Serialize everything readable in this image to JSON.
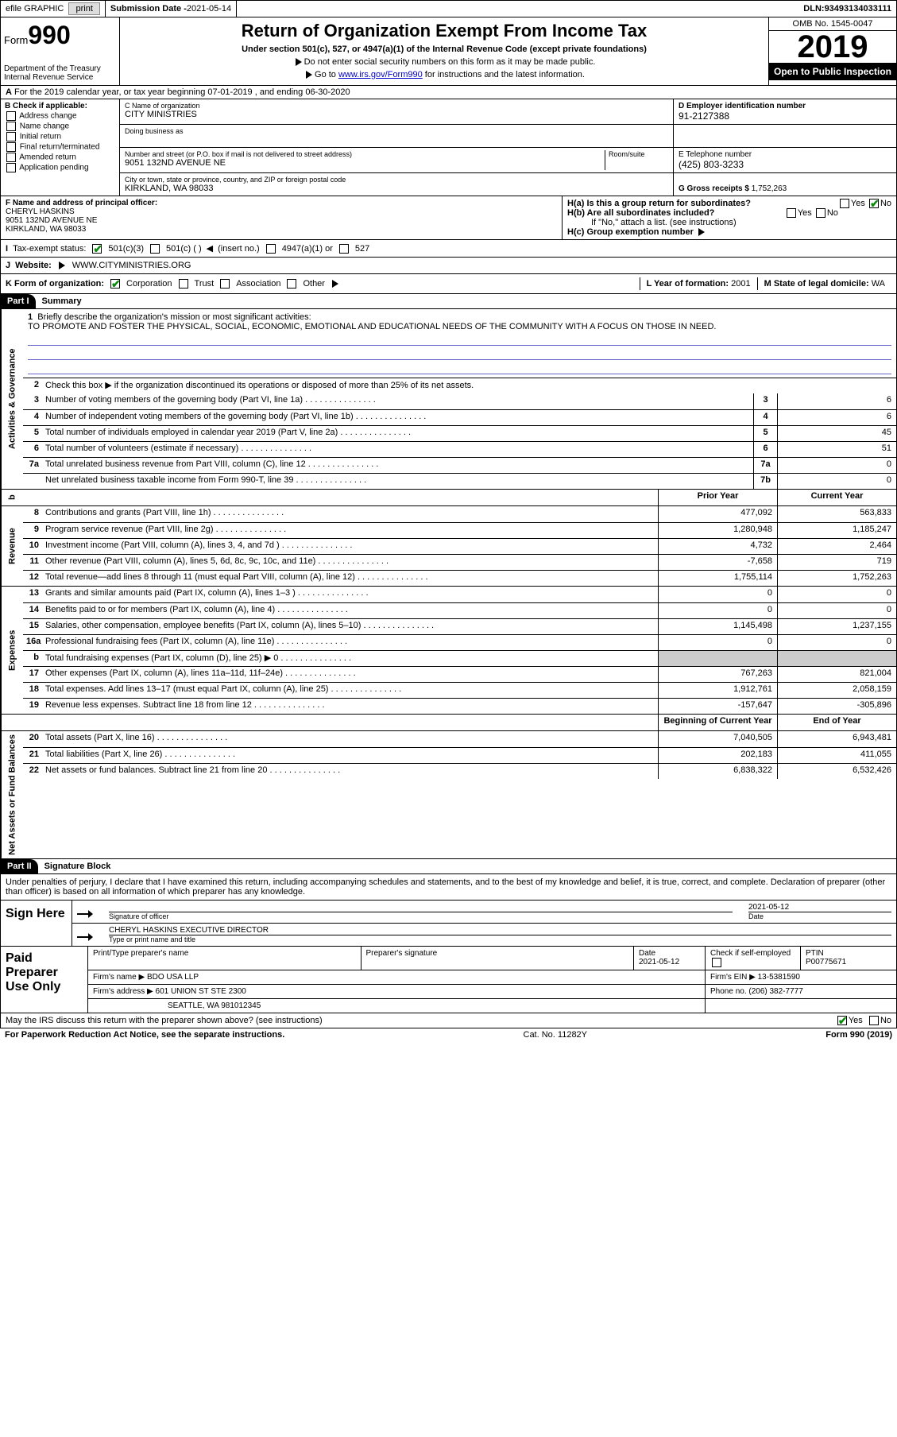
{
  "topbar": {
    "efile": "efile GRAPHIC",
    "print": "print",
    "subdate_lbl": "Submission Date - ",
    "subdate": "2021-05-14",
    "dln_lbl": "DLN: ",
    "dln": "93493134033111"
  },
  "header": {
    "form_word": "Form",
    "form_num": "990",
    "dept": "Department of the Treasury\nInternal Revenue Service",
    "title": "Return of Organization Exempt From Income Tax",
    "sub": "Under section 501(c), 527, or 4947(a)(1) of the Internal Revenue Code (except private foundations)",
    "note1": "Do not enter social security numbers on this form as it may be made public.",
    "note2_pre": "Go to ",
    "note2_link": "www.irs.gov/Form990",
    "note2_post": " for instructions and the latest information.",
    "omb": "OMB No. 1545-0047",
    "year": "2019",
    "inspect": "Open to Public Inspection"
  },
  "rowA": {
    "text": "For the 2019 calendar year, or tax year beginning 07-01-2019   , and ending 06-30-2020"
  },
  "B": {
    "hdr": "B Check if applicable:",
    "opts": [
      "Address change",
      "Name change",
      "Initial return",
      "Final return/terminated",
      "Amended return",
      "Application pending"
    ]
  },
  "C": {
    "name_lbl": "C Name of organization",
    "name": "CITY MINISTRIES",
    "dba_lbl": "Doing business as",
    "addr_lbl": "Number and street (or P.O. box if mail is not delivered to street address)",
    "room_lbl": "Room/suite",
    "addr": "9051 132ND AVENUE NE",
    "city_lbl": "City or town, state or province, country, and ZIP or foreign postal code",
    "city": "KIRKLAND, WA  98033"
  },
  "D": {
    "lbl": "D Employer identification number",
    "val": "91-2127388"
  },
  "E": {
    "lbl": "E Telephone number",
    "val": "(425) 803-3233"
  },
  "G": {
    "lbl": "G Gross receipts $ ",
    "val": "1,752,263"
  },
  "F": {
    "lbl": "F  Name and address of principal officer:",
    "name": "CHERYL HASKINS",
    "addr1": "9051 132ND AVENUE NE",
    "addr2": "KIRKLAND, WA  98033"
  },
  "H": {
    "a": "H(a)  Is this a group return for subordinates?",
    "b": "H(b)  Are all subordinates included?",
    "b_note": "If \"No,\" attach a list. (see instructions)",
    "c": "H(c)  Group exemption number",
    "yes": "Yes",
    "no": "No"
  },
  "I": {
    "lbl": "Tax-exempt status:",
    "o1": "501(c)(3)",
    "o2": "501(c) (  )",
    "o2b": "(insert no.)",
    "o3": "4947(a)(1) or",
    "o4": "527"
  },
  "J": {
    "lbl": "Website:",
    "val": "WWW.CITYMINISTRIES.ORG"
  },
  "K": {
    "lbl": "K Form of organization:",
    "o1": "Corporation",
    "o2": "Trust",
    "o3": "Association",
    "o4": "Other",
    "L_lbl": "L Year of formation: ",
    "L_val": "2001",
    "M_lbl": "M State of legal domicile: ",
    "M_val": "WA"
  },
  "part1": {
    "hdr": "Part I",
    "title": "Summary"
  },
  "mission": {
    "num": "1",
    "lbl": "Briefly describe the organization's mission or most significant activities:",
    "text": "TO PROMOTE AND FOSTER THE PHYSICAL, SOCIAL, ECONOMIC, EMOTIONAL AND EDUCATIONAL NEEDS OF THE COMMUNITY WITH A FOCUS ON THOSE IN NEED."
  },
  "gov": {
    "side": "Activities & Governance",
    "l2": "Check this box ▶        if the organization discontinued its operations or disposed of more than 25% of its net assets.",
    "rows": [
      {
        "n": "3",
        "t": "Number of voting members of the governing body (Part VI, line 1a)",
        "b": "3",
        "v": "6"
      },
      {
        "n": "4",
        "t": "Number of independent voting members of the governing body (Part VI, line 1b)",
        "b": "4",
        "v": "6"
      },
      {
        "n": "5",
        "t": "Total number of individuals employed in calendar year 2019 (Part V, line 2a)",
        "b": "5",
        "v": "45"
      },
      {
        "n": "6",
        "t": "Total number of volunteers (estimate if necessary)",
        "b": "6",
        "v": "51"
      },
      {
        "n": "7a",
        "t": "Total unrelated business revenue from Part VIII, column (C), line 12",
        "b": "7a",
        "v": "0"
      },
      {
        "n": "",
        "t": "Net unrelated business taxable income from Form 990-T, line 39",
        "b": "7b",
        "v": "0"
      }
    ]
  },
  "revhdr": {
    "b": "b",
    "py": "Prior Year",
    "cy": "Current Year"
  },
  "rev": {
    "side": "Revenue",
    "rows": [
      {
        "n": "8",
        "t": "Contributions and grants (Part VIII, line 1h)",
        "py": "477,092",
        "cy": "563,833"
      },
      {
        "n": "9",
        "t": "Program service revenue (Part VIII, line 2g)",
        "py": "1,280,948",
        "cy": "1,185,247"
      },
      {
        "n": "10",
        "t": "Investment income (Part VIII, column (A), lines 3, 4, and 7d )",
        "py": "4,732",
        "cy": "2,464"
      },
      {
        "n": "11",
        "t": "Other revenue (Part VIII, column (A), lines 5, 6d, 8c, 9c, 10c, and 11e)",
        "py": "-7,658",
        "cy": "719"
      },
      {
        "n": "12",
        "t": "Total revenue—add lines 8 through 11 (must equal Part VIII, column (A), line 12)",
        "py": "1,755,114",
        "cy": "1,752,263"
      }
    ]
  },
  "exp": {
    "side": "Expenses",
    "rows": [
      {
        "n": "13",
        "t": "Grants and similar amounts paid (Part IX, column (A), lines 1–3 )",
        "py": "0",
        "cy": "0"
      },
      {
        "n": "14",
        "t": "Benefits paid to or for members (Part IX, column (A), line 4)",
        "py": "0",
        "cy": "0"
      },
      {
        "n": "15",
        "t": "Salaries, other compensation, employee benefits (Part IX, column (A), lines 5–10)",
        "py": "1,145,498",
        "cy": "1,237,155"
      },
      {
        "n": "16a",
        "t": "Professional fundraising fees (Part IX, column (A), line 11e)",
        "py": "0",
        "cy": "0"
      },
      {
        "n": "b",
        "t": "Total fundraising expenses (Part IX, column (D), line 25) ▶ 0",
        "py": "shade",
        "cy": "shade"
      },
      {
        "n": "17",
        "t": "Other expenses (Part IX, column (A), lines 11a–11d, 11f–24e)",
        "py": "767,263",
        "cy": "821,004"
      },
      {
        "n": "18",
        "t": "Total expenses. Add lines 13–17 (must equal Part IX, column (A), line 25)",
        "py": "1,912,761",
        "cy": "2,058,159"
      },
      {
        "n": "19",
        "t": "Revenue less expenses. Subtract line 18 from line 12",
        "py": "-157,647",
        "cy": "-305,896"
      }
    ]
  },
  "nethdr": {
    "py": "Beginning of Current Year",
    "cy": "End of Year"
  },
  "net": {
    "side": "Net Assets or Fund Balances",
    "rows": [
      {
        "n": "20",
        "t": "Total assets (Part X, line 16)",
        "py": "7,040,505",
        "cy": "6,943,481"
      },
      {
        "n": "21",
        "t": "Total liabilities (Part X, line 26)",
        "py": "202,183",
        "cy": "411,055"
      },
      {
        "n": "22",
        "t": "Net assets or fund balances. Subtract line 21 from line 20",
        "py": "6,838,322",
        "cy": "6,532,426"
      }
    ]
  },
  "part2": {
    "hdr": "Part II",
    "title": "Signature Block"
  },
  "sig": {
    "declare": "Under penalties of perjury, I declare that I have examined this return, including accompanying schedules and statements, and to the best of my knowledge and belief, it is true, correct, and complete. Declaration of preparer (other than officer) is based on all information of which preparer has any knowledge.",
    "sign_here": "Sign Here",
    "sig_lbl": "Signature of officer",
    "date_lbl": "Date",
    "date": "2021-05-12",
    "name": "CHERYL HASKINS  EXECUTIVE DIRECTOR",
    "name_lbl": "Type or print name and title"
  },
  "paid": {
    "hdr": "Paid Preparer Use Only",
    "r1": {
      "c1": "Print/Type preparer's name",
      "c2": "Preparer's signature",
      "c3_lbl": "Date",
      "c3": "2021-05-12",
      "c4": "Check        if self-employed",
      "c5_lbl": "PTIN",
      "c5": "P00775671"
    },
    "r2": {
      "c1_lbl": "Firm's name    ▶",
      "c1": "BDO USA LLP",
      "c2_lbl": "Firm's EIN ▶",
      "c2": "13-5381590"
    },
    "r3": {
      "c1_lbl": "Firm's address ▶",
      "c1": "601 UNION ST STE 2300",
      "c2_lbl": "Phone no. ",
      "c2": "(206) 382-7777"
    },
    "r4": {
      "c1": "SEATTLE, WA  981012345"
    }
  },
  "footer": {
    "q": "May the IRS discuss this return with the preparer shown above? (see instructions)",
    "yes": "Yes",
    "no": "No"
  },
  "bottom": {
    "l": "For Paperwork Reduction Act Notice, see the separate instructions.",
    "m": "Cat. No. 11282Y",
    "r": "Form 990 (2019)"
  }
}
